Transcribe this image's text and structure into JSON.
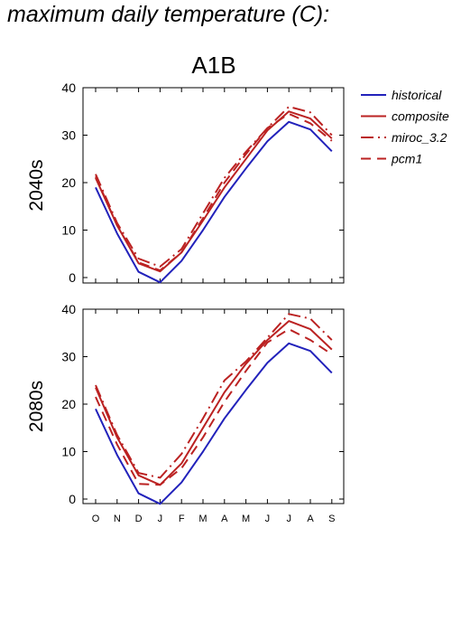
{
  "page_title": "maximum daily temperature (C):",
  "chart_data": {
    "type": "line",
    "title": "A1B",
    "categories": [
      "O",
      "N",
      "D",
      "J",
      "F",
      "M",
      "A",
      "M",
      "J",
      "J",
      "A",
      "S"
    ],
    "ylim": [
      0,
      40
    ],
    "yticks": [
      0,
      10,
      20,
      30,
      40
    ],
    "legend": {
      "placement": "right",
      "entries": [
        {
          "name": "historical",
          "color": "#2222bb",
          "dash": "solid"
        },
        {
          "name": "composite",
          "color": "#bb2222",
          "dash": "solid"
        },
        {
          "name": "miroc_3.2",
          "color": "#bb2222",
          "dash": "dashdot"
        },
        {
          "name": "pcm1",
          "color": "#bb2222",
          "dash": "dashed"
        }
      ]
    },
    "panels": [
      {
        "ylabel": "2040s",
        "series": [
          {
            "name": "historical",
            "values": [
              19.0,
              9.3,
              1.2,
              -1.0,
              3.5,
              10.0,
              17.0,
              23.0,
              28.7,
              32.8,
              31.2,
              26.6
            ]
          },
          {
            "name": "composite",
            "values": [
              21.0,
              11.0,
              3.0,
              1.3,
              5.3,
              12.0,
              19.0,
              25.0,
              31.0,
              35.0,
              33.5,
              29.3
            ]
          },
          {
            "name": "miroc_3.2",
            "values": [
              21.8,
              11.5,
              4.0,
              2.3,
              6.0,
              13.5,
              21.0,
              26.5,
              31.5,
              36.0,
              34.8,
              30.0
            ]
          },
          {
            "name": "pcm1",
            "values": [
              21.3,
              11.0,
              3.2,
              1.5,
              5.3,
              12.5,
              20.0,
              26.0,
              31.5,
              34.5,
              32.5,
              28.8
            ]
          }
        ]
      },
      {
        "ylabel": "2080s",
        "series": [
          {
            "name": "historical",
            "values": [
              19.0,
              9.3,
              1.2,
              -1.0,
              3.5,
              10.0,
              17.0,
              23.0,
              28.7,
              32.8,
              31.2,
              26.6
            ]
          },
          {
            "name": "composite",
            "values": [
              23.5,
              13.0,
              5.0,
              3.0,
              7.5,
              15.0,
              22.5,
              28.5,
              33.5,
              37.5,
              35.8,
              31.5
            ]
          },
          {
            "name": "miroc_3.2",
            "values": [
              24.0,
              13.5,
              5.5,
              4.5,
              9.5,
              17.0,
              25.0,
              29.0,
              34.0,
              39.0,
              38.0,
              33.5
            ]
          },
          {
            "name": "pcm1",
            "values": [
              21.5,
              11.5,
              3.2,
              3.0,
              6.5,
              13.0,
              20.5,
              27.0,
              33.0,
              35.8,
              33.5,
              30.5
            ]
          }
        ]
      }
    ]
  }
}
